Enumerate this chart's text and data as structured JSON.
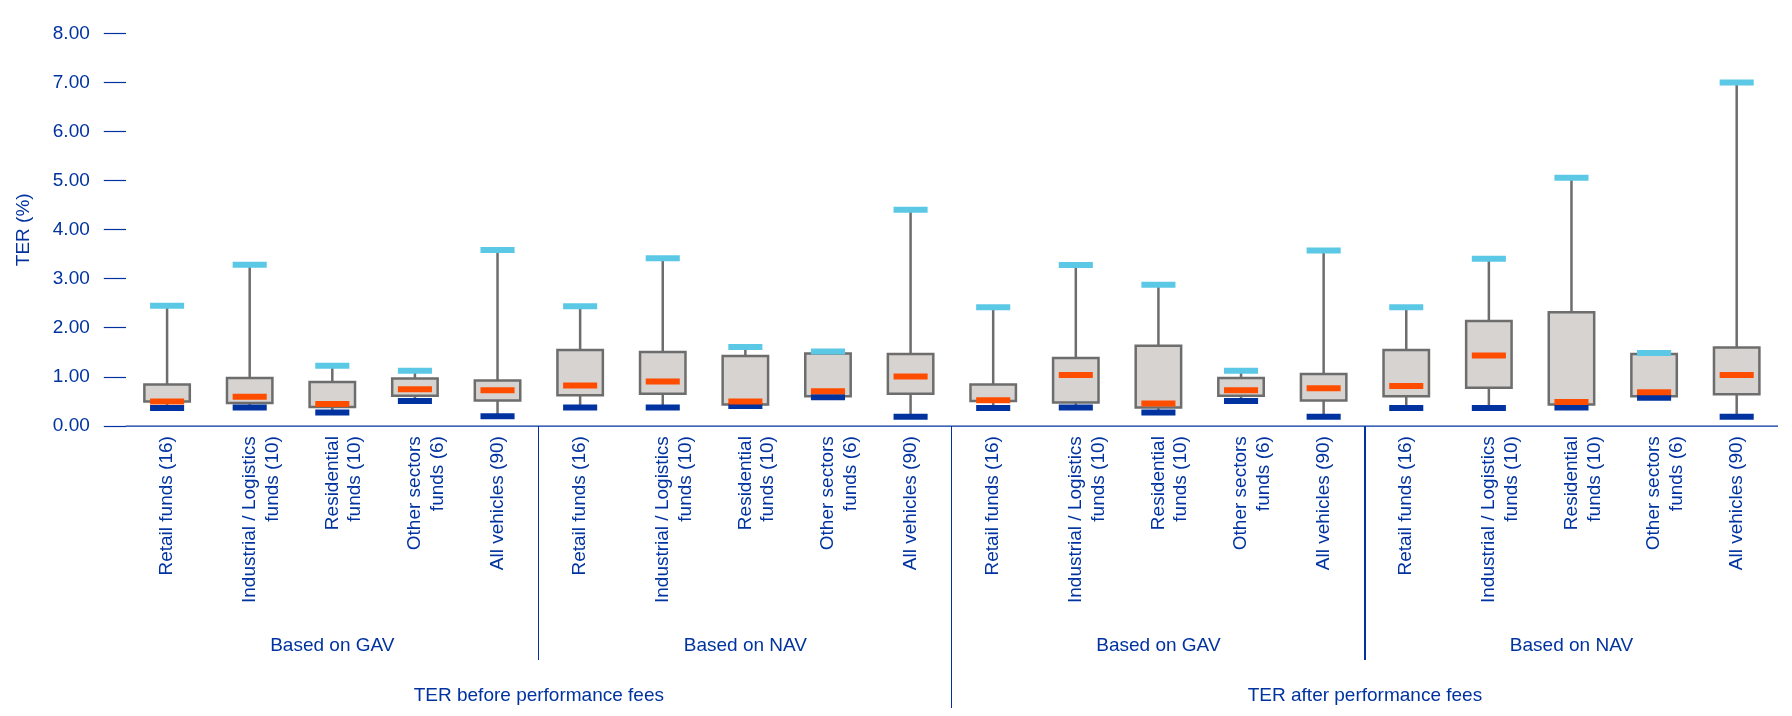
{
  "chart_data": {
    "type": "box",
    "ylabel": "TER (%)",
    "categories": [
      "Retail funds (16)",
      "Industrial / Logistics funds (10)",
      "Residential funds (10)",
      "Other sectors funds (6)",
      "All vehicles (90)",
      "Retail funds (16)",
      "Industrial / Logistics funds (10)",
      "Residential funds (10)",
      "Other sectors funds (6)",
      "All vehicles (90)",
      "Retail funds (16)",
      "Industrial / Logistics funds (10)",
      "Residential funds (10)",
      "Other sectors funds (6)",
      "All vehicles (90)",
      "Retail funds (16)",
      "Industrial / Logistics funds (10)",
      "Residential funds (10)",
      "Other sectors funds (6)",
      "All vehicles (90)"
    ],
    "series": [
      {
        "color": "#d6d3d0",
        "boxes": [
          {
            "low": 0.37,
            "q1": 0.5,
            "median": 0.5,
            "q3": 0.85,
            "high": 2.45
          },
          {
            "low": 0.38,
            "q1": 0.47,
            "median": 0.6,
            "q3": 0.98,
            "high": 3.29
          },
          {
            "low": 0.28,
            "q1": 0.39,
            "median": 0.45,
            "q3": 0.9,
            "high": 1.23
          },
          {
            "low": 0.51,
            "q1": 0.62,
            "median": 0.75,
            "q3": 0.97,
            "high": 1.13
          },
          {
            "low": 0.2,
            "q1": 0.52,
            "median": 0.73,
            "q3": 0.93,
            "high": 3.59
          },
          {
            "low": 0.38,
            "q1": 0.63,
            "median": 0.83,
            "q3": 1.55,
            "high": 2.44
          },
          {
            "low": 0.38,
            "q1": 0.66,
            "median": 0.91,
            "q3": 1.51,
            "high": 3.42
          },
          {
            "low": 0.41,
            "q1": 0.44,
            "median": 0.5,
            "q3": 1.43,
            "high": 1.61
          },
          {
            "low": 0.59,
            "q1": 0.61,
            "median": 0.71,
            "q3": 1.48,
            "high": 1.52
          },
          {
            "low": 0.19,
            "q1": 0.66,
            "median": 1.01,
            "q3": 1.47,
            "high": 4.41
          },
          {
            "low": 0.37,
            "q1": 0.51,
            "median": 0.53,
            "q3": 0.85,
            "high": 2.42
          },
          {
            "low": 0.38,
            "q1": 0.48,
            "median": 1.04,
            "q3": 1.39,
            "high": 3.28
          },
          {
            "low": 0.28,
            "q1": 0.38,
            "median": 0.46,
            "q3": 1.64,
            "high": 2.88
          },
          {
            "low": 0.51,
            "q1": 0.62,
            "median": 0.73,
            "q3": 0.98,
            "high": 1.13
          },
          {
            "low": 0.19,
            "q1": 0.52,
            "median": 0.77,
            "q3": 1.06,
            "high": 3.58
          },
          {
            "low": 0.37,
            "q1": 0.61,
            "median": 0.82,
            "q3": 1.55,
            "high": 2.42
          },
          {
            "low": 0.37,
            "q1": 0.78,
            "median": 1.44,
            "q3": 2.14,
            "high": 3.41
          },
          {
            "low": 0.38,
            "q1": 0.44,
            "median": 0.49,
            "q3": 2.32,
            "high": 5.06
          },
          {
            "low": 0.58,
            "q1": 0.61,
            "median": 0.69,
            "q3": 1.47,
            "high": 1.49
          },
          {
            "low": 0.19,
            "q1": 0.65,
            "median": 1.04,
            "q3": 1.6,
            "high": 7.0
          }
        ]
      }
    ],
    "ylim": [
      0,
      8
    ],
    "yticks": [
      {
        "value": 0,
        "label": "0.00"
      },
      {
        "value": 1,
        "label": "1.00"
      },
      {
        "value": 2,
        "label": "2.00"
      },
      {
        "value": 3,
        "label": "3.00"
      },
      {
        "value": 4,
        "label": "4.00"
      },
      {
        "value": 5,
        "label": "5.00"
      },
      {
        "value": 6,
        "label": "6.00"
      },
      {
        "value": 7,
        "label": "7.00"
      },
      {
        "value": 8,
        "label": "8.00"
      }
    ],
    "grid": false,
    "legend": false,
    "annotations": [
      "Based on GAV",
      "Based on NAV",
      "Based on GAV",
      "Based on NAV",
      "TER before performance fees",
      "TER after performance fees"
    ]
  }
}
